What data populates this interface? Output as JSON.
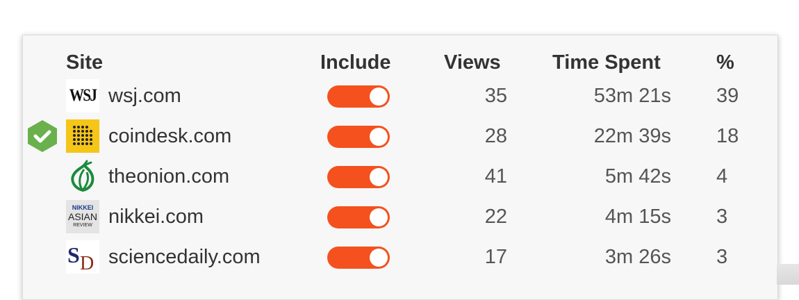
{
  "table": {
    "headers": {
      "site": "Site",
      "include": "Include",
      "views": "Views",
      "time_spent": "Time Spent",
      "percent": "%"
    },
    "rows": [
      {
        "site": "wsj.com",
        "favicon": "wsj-logo-icon",
        "include": true,
        "views": "35",
        "time_spent": "53m 21s",
        "percent": "39",
        "verified": false
      },
      {
        "site": "coindesk.com",
        "favicon": "coindesk-logo-icon",
        "include": true,
        "views": "28",
        "time_spent": "22m 39s",
        "percent": "18",
        "verified": true
      },
      {
        "site": "theonion.com",
        "favicon": "theonion-logo-icon",
        "include": true,
        "views": "41",
        "time_spent": "5m 42s",
        "percent": "4",
        "verified": false
      },
      {
        "site": "nikkei.com",
        "favicon": "nikkei-logo-icon",
        "include": true,
        "views": "22",
        "time_spent": "4m 15s",
        "percent": "3",
        "verified": false
      },
      {
        "site": "sciencedaily.com",
        "favicon": "sciencedaily-logo-icon",
        "include": true,
        "views": "17",
        "time_spent": "3m 26s",
        "percent": "3",
        "verified": false
      }
    ]
  },
  "logos": {
    "wsj": "WSJ",
    "nikkei_line1": "NIKKEI",
    "nikkei_line2": "ASIAN",
    "nikkei_line3": "REVIEW"
  },
  "colors": {
    "toggle_on": "#f4511e",
    "verified_badge": "#6ab04c",
    "coindesk_bg": "#f5c518",
    "onion_green": "#1a8a3c"
  }
}
